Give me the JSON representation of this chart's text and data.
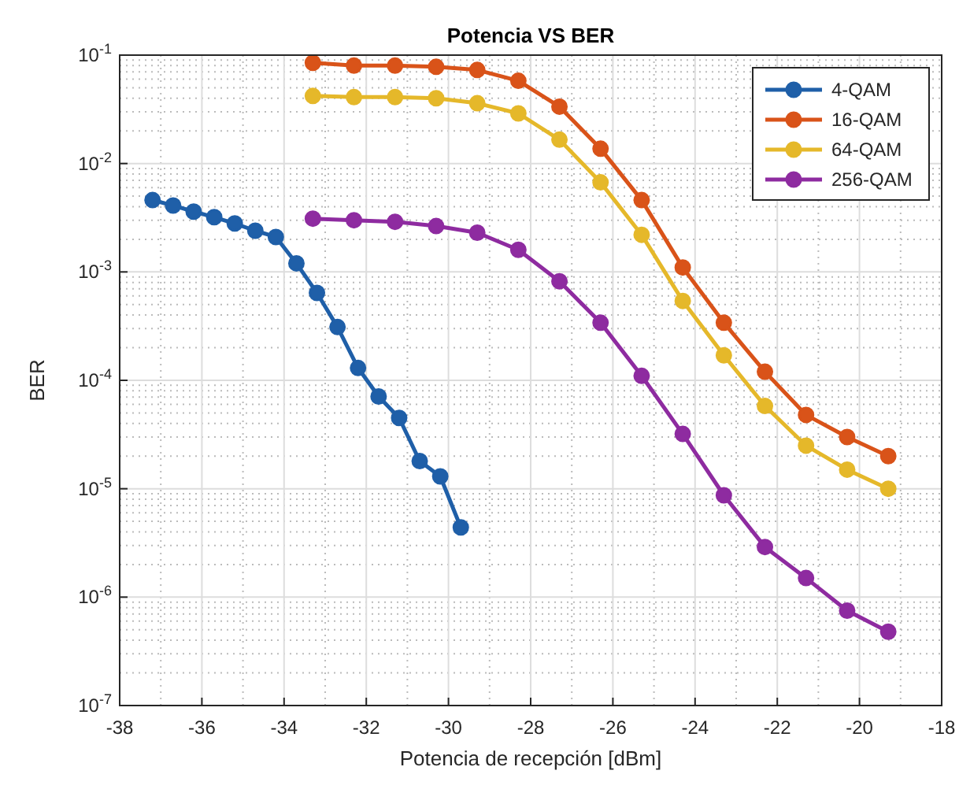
{
  "chart_data": {
    "type": "line",
    "title": "Potencia VS BER",
    "xlabel": "Potencia de recepción [dBm]",
    "ylabel": "BER",
    "log": "y",
    "grid": true,
    "legend": "top right",
    "marker": "circle",
    "line_style": "solid",
    "xlim": [
      -38,
      -18
    ],
    "xticks": [
      -38,
      -36,
      -34,
      -32,
      -30,
      -28,
      -26,
      -24,
      -22,
      -20,
      -18
    ],
    "ylim": [
      1e-07,
      0.1
    ],
    "yticks": [
      {
        "value": 1e-07,
        "label": "10$^{-7}$"
      },
      {
        "value": 1e-06,
        "label": "10$^{-6}$"
      },
      {
        "value": 1e-05,
        "label": "10$^{-5}$"
      },
      {
        "value": 0.0001,
        "label": "10$^{-4}$"
      },
      {
        "value": 0.001,
        "label": "10$^{-3}$"
      },
      {
        "value": 0.01,
        "label": "10$^{-2}$"
      },
      {
        "value": 0.1,
        "label": "10$^{-1}$"
      }
    ],
    "series": [
      {
        "name": "4-QAM",
        "color": "#1f5fa8",
        "x": [
          -37.2,
          -36.7,
          -36.2,
          -35.7,
          -35.2,
          -34.7,
          -34.2,
          -33.7,
          -33.2,
          -32.7,
          -32.2,
          -31.7,
          -31.2,
          -30.7,
          -30.2,
          -29.7
        ],
        "values": [
          0.0046,
          0.0041,
          0.0036,
          0.0032,
          0.0028,
          0.0024,
          0.0021,
          0.0012,
          0.00064,
          0.00031,
          0.00013,
          7.1e-05,
          4.5e-05,
          1.8e-05,
          1.3e-05,
          4.4e-06
        ]
      },
      {
        "name": "16-QAM",
        "color": "#d95319",
        "x": [
          -33.3,
          -32.3,
          -31.3,
          -30.3,
          -29.3,
          -28.3,
          -27.3,
          -26.3,
          -25.3,
          -24.3,
          -23.3,
          -22.3,
          -21.3,
          -20.3,
          -19.3
        ],
        "values": [
          0.085,
          0.08,
          0.08,
          0.078,
          0.073,
          0.058,
          0.0335,
          0.0137,
          0.0046,
          0.0011,
          0.00034,
          0.00012,
          4.8e-05,
          3e-05,
          2e-05
        ]
      },
      {
        "name": "64-QAM",
        "color": "#e5b82a",
        "x": [
          -33.3,
          -32.3,
          -31.3,
          -30.3,
          -29.3,
          -28.3,
          -27.3,
          -26.3,
          -25.3,
          -24.3,
          -23.3,
          -22.3,
          -21.3,
          -20.3,
          -19.3
        ],
        "values": [
          0.042,
          0.041,
          0.041,
          0.04,
          0.036,
          0.029,
          0.0166,
          0.0067,
          0.0022,
          0.00054,
          0.00017,
          5.8e-05,
          2.5e-05,
          1.5e-05,
          1e-05
        ]
      },
      {
        "name": "256-QAM",
        "color": "#8e2ba0",
        "x": [
          -33.3,
          -32.3,
          -31.3,
          -30.3,
          -29.3,
          -28.3,
          -27.3,
          -26.3,
          -25.3,
          -24.3,
          -23.3,
          -22.3,
          -21.3,
          -20.3,
          -19.3
        ],
        "values": [
          0.0031,
          0.003,
          0.0029,
          0.00265,
          0.0023,
          0.0016,
          0.00082,
          0.00034,
          0.00011,
          3.2e-05,
          8.7e-06,
          2.9e-06,
          1.5e-06,
          7.5e-07,
          4.8e-07
        ]
      }
    ]
  }
}
